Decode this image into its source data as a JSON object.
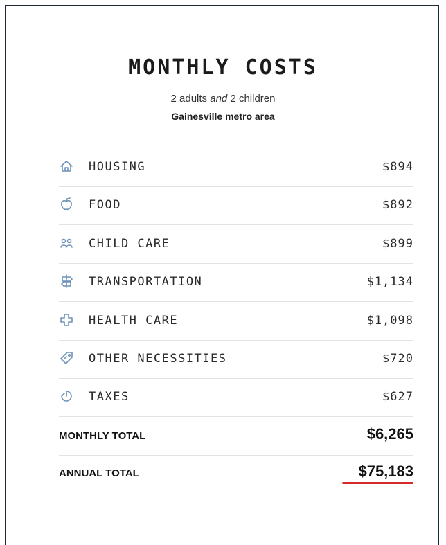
{
  "title": "MONTHLY COSTS",
  "subtitle": {
    "adults": "2 adults",
    "and": "and",
    "children": "2 children",
    "area": "Gainesville metro area"
  },
  "rows": [
    {
      "label": "HOUSING",
      "value": "$894"
    },
    {
      "label": "FOOD",
      "value": "$892"
    },
    {
      "label": "CHILD CARE",
      "value": "$899"
    },
    {
      "label": "TRANSPORTATION",
      "value": "$1,134"
    },
    {
      "label": "HEALTH CARE",
      "value": "$1,098"
    },
    {
      "label": "OTHER NECESSITIES",
      "value": "$720"
    },
    {
      "label": "TAXES",
      "value": "$627"
    }
  ],
  "totals": [
    {
      "label": "MONTHLY TOTAL",
      "value": "$6,265"
    },
    {
      "label": "ANNUAL TOTAL",
      "value": "$75,183"
    }
  ]
}
